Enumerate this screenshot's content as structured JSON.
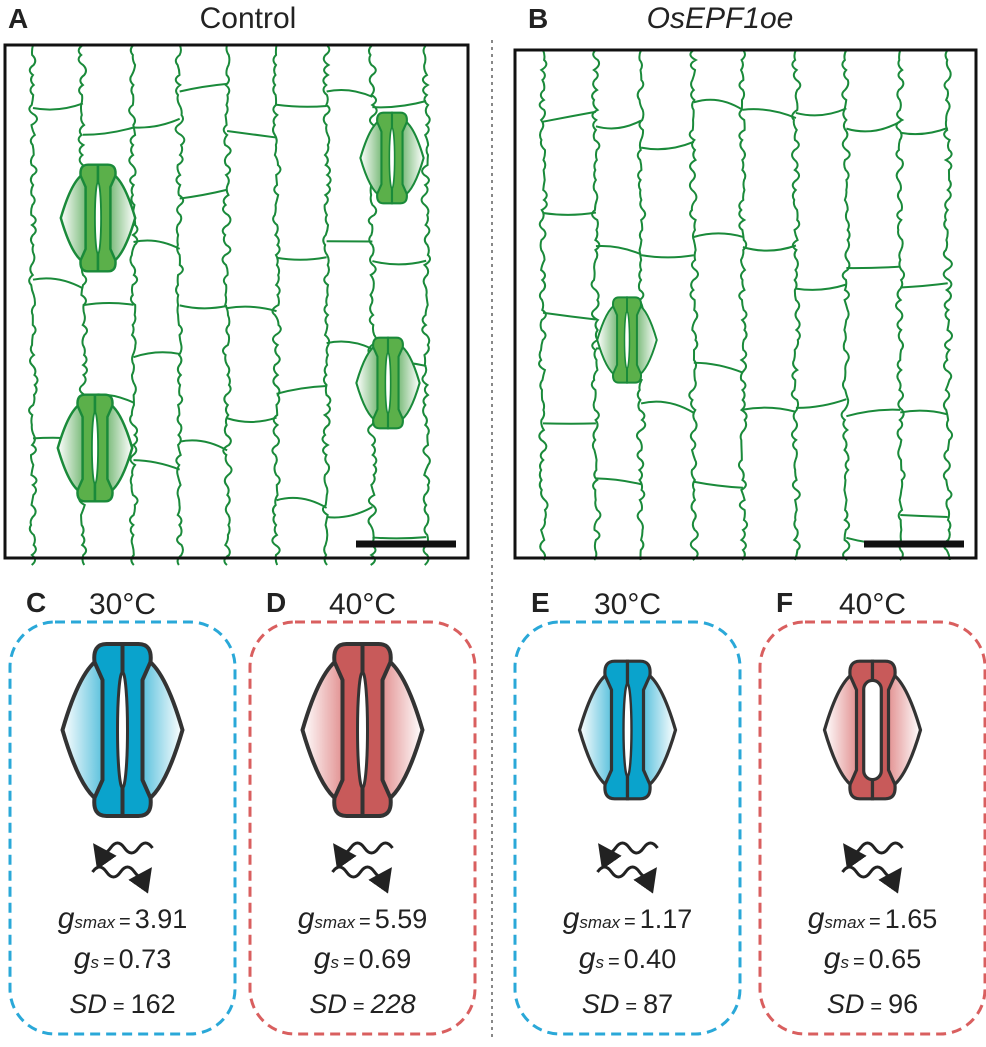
{
  "panels": [
    {
      "letter": "A",
      "title": "Control"
    },
    {
      "letter": "B",
      "title": "OsEPF1oe"
    }
  ],
  "symbols": {
    "g": "g",
    "smax": "smax",
    "s": "s",
    "sd": "SD",
    "eq": "="
  },
  "conditions": [
    {
      "letter": "C",
      "temperature": "30°C",
      "gsmax": "3.91",
      "gs": "0.73",
      "sd": "162"
    },
    {
      "letter": "D",
      "temperature": "40°C",
      "gsmax": "5.59",
      "gs": "0.69",
      "sd": "228"
    },
    {
      "letter": "E",
      "temperature": "30°C",
      "gsmax": "1.17",
      "gs": "0.40",
      "sd": "87"
    },
    {
      "letter": "F",
      "temperature": "40°C",
      "gsmax": "1.65",
      "gs": "0.65",
      "sd": "96"
    }
  ]
}
